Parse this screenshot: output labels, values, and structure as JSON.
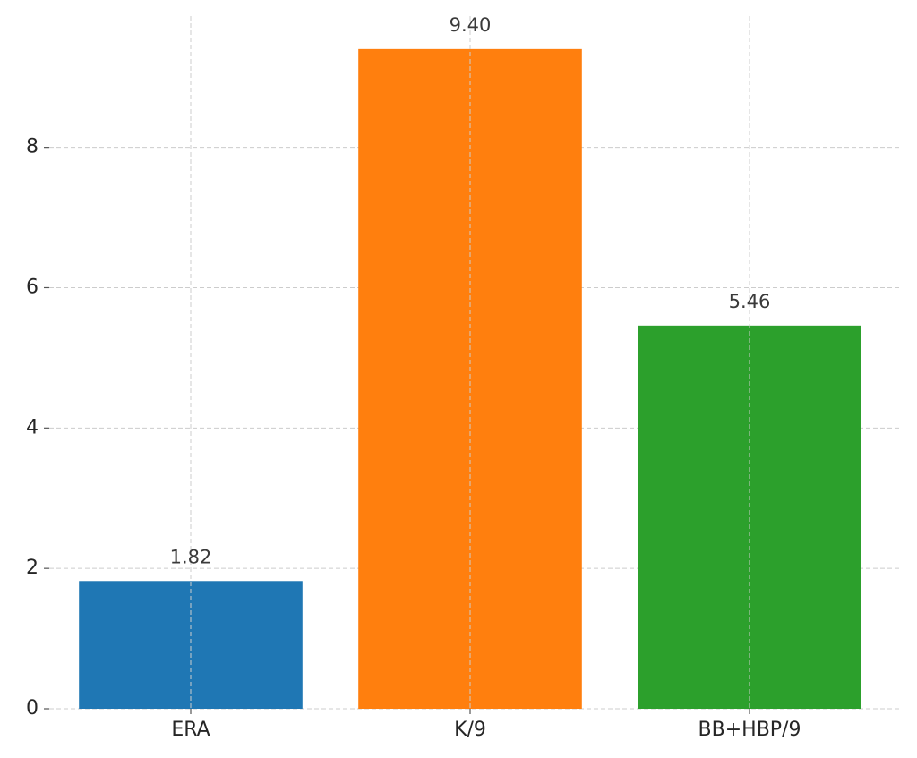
{
  "chart_data": {
    "type": "bar",
    "categories": [
      "ERA",
      "K/9",
      "BB+HBP/9"
    ],
    "values": [
      1.82,
      9.4,
      5.46
    ],
    "value_labels": [
      "1.82",
      "9.40",
      "5.46"
    ],
    "colors": [
      "#1f77b4",
      "#ff7f0e",
      "#2ca02c"
    ],
    "ylim": [
      0,
      9.87
    ],
    "yticks": [
      0,
      2,
      4,
      6,
      8
    ],
    "grid": true
  }
}
